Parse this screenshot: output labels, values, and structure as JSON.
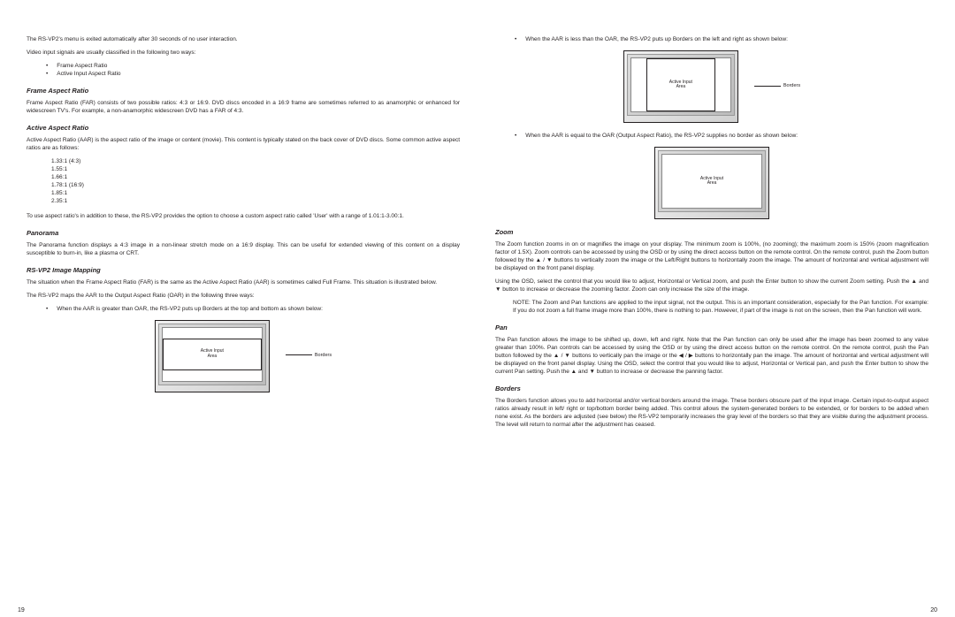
{
  "left": {
    "intro1": "The RS-VP2's menu is exited automatically after 30 seconds of no user interaction.",
    "intro2": "Video input signals are usually classified in the following two ways:",
    "bullets": [
      "Frame Aspect Ratio",
      "Active Input Aspect Ratio"
    ],
    "far_h": "Frame Aspect Ratio",
    "far_p": "Frame Aspect Ratio (FAR) consists of two possible ratios: 4:3 or 16:9. DVD discs encoded in a 16:9 frame are sometimes referred to as anamorphic or enhanced for widescreen TV's. For example, a non-anamorphic widescreen DVD has a FAR of 4:3.",
    "aar_h": "Active Aspect Ratio",
    "aar_p1": "Active Aspect Ratio (AAR) is the aspect ratio of the image or content (movie). This content is typically stated on the back cover of DVD discs. Some common active aspect ratios are as follows:",
    "ratios": [
      "1.33:1 (4:3)",
      "1.55:1",
      "1.66:1",
      "1.78:1 (16:9)",
      "1.85:1",
      "2.35:1"
    ],
    "aar_p2": "To use aspect ratio's in addition to these, the RS-VP2 provides the option to choose a custom aspect ratio called 'User' with a range of 1.01:1-3.00:1.",
    "pan_h": "Panorama",
    "pan_p": "The Panorama function displays a 4:3 image in a non-linear stretch mode on a 16:9 display.  This can be useful for extended viewing of this content on a display susceptible to burn-in, like a plasma or CRT.",
    "im_h": "RS-VP2 Image Mapping",
    "im_p1": "The situation when the Frame Aspect Ratio (FAR) is the same as the Active Aspect Ratio (AAR) is sometimes called Full Frame. This situation is illustrated below.",
    "im_p2": "The RS-VP2 maps the AAR to the Output Aspect Ratio (OAR) in the following three ways:",
    "im_b1": "When the AAR is greater than OAR, the RS-VP2 puts up Borders at the top and bottom as shown below:",
    "active_label1": "Active Input",
    "active_label2": "Area",
    "borders_label": "Borders",
    "page": "19"
  },
  "right": {
    "b2": "When the AAR is less than the OAR, the RS-VP2 puts up Borders on the left and right as shown below:",
    "b3": "When the AAR is equal to the OAR (Output Aspect Ratio), the RS-VP2 supplies no border as shown below:",
    "zoom_h": "Zoom",
    "zoom_p1": "The Zoom function zooms in on or magnifies the image on your display. The minimum zoom is 100%, (no zooming); the maximum zoom is 150% (zoom magnification factor of 1.5X). Zoom controls can be accessed by using the OSD or by using the direct access button on the remote control. On the remote control, push the Zoom button followed by the ▲ / ▼ buttons to vertically zoom the image or the Left/Right buttons to horizontally zoom the image. The amount of horizontal and vertical adjustment will be displayed on the front panel display.",
    "zoom_p2": "Using the OSD, select the control that you would like to adjust, Horizontal or Vertical zoom, and push the Enter button to show the current Zoom setting. Push the ▲ and ▼ button to increase or decrease the zooming factor. Zoom can only increase the size of the image.",
    "note": "NOTE: The Zoom and Pan functions are applied to the input signal, not the output. This is an important consideration, especially for the Pan function. For example: If you do not zoom a full frame image more than 100%, there is nothing to pan. However, if part of the image is not on the screen, then the Pan function will work.",
    "pan_h": "Pan",
    "pan_p": "The Pan function allows the image to be shifted up, down, left and right. Note that the Pan function can only be used after the image has been zoomed to any value greater than 100%. Pan controls can be accessed by using the OSD or by using the direct access button on the remote control. On the remote control, push the Pan button followed by the ▲ / ▼ buttons to vertically pan the image or the ◀ / ▶ buttons to horizontally pan the image. The amount of horizontal and vertical adjustment will be displayed on the front panel display. Using the OSD, select the control that you would like to adjust, Horizontal or Vertical pan, and push the Enter button to show the current Pan setting. Push the ▲ and ▼ button to increase or decrease the panning factor.",
    "bord_h": "Borders",
    "bord_p": "The Borders function allows you to add horizontal and/or vertical borders around the image. These borders obscure part of the input image. Certain input-to-output aspect ratios already result in left/ right or top/bottom border being added. This control allows the system-generated borders to be extended, or for borders to be added when none exist. As the borders are adjusted (see below) the RS-VP2 temporarily increases the gray level of the borders so that they are visible during the adjustment process. The level will return to normal after the adjustment has ceased.",
    "page": "20"
  }
}
